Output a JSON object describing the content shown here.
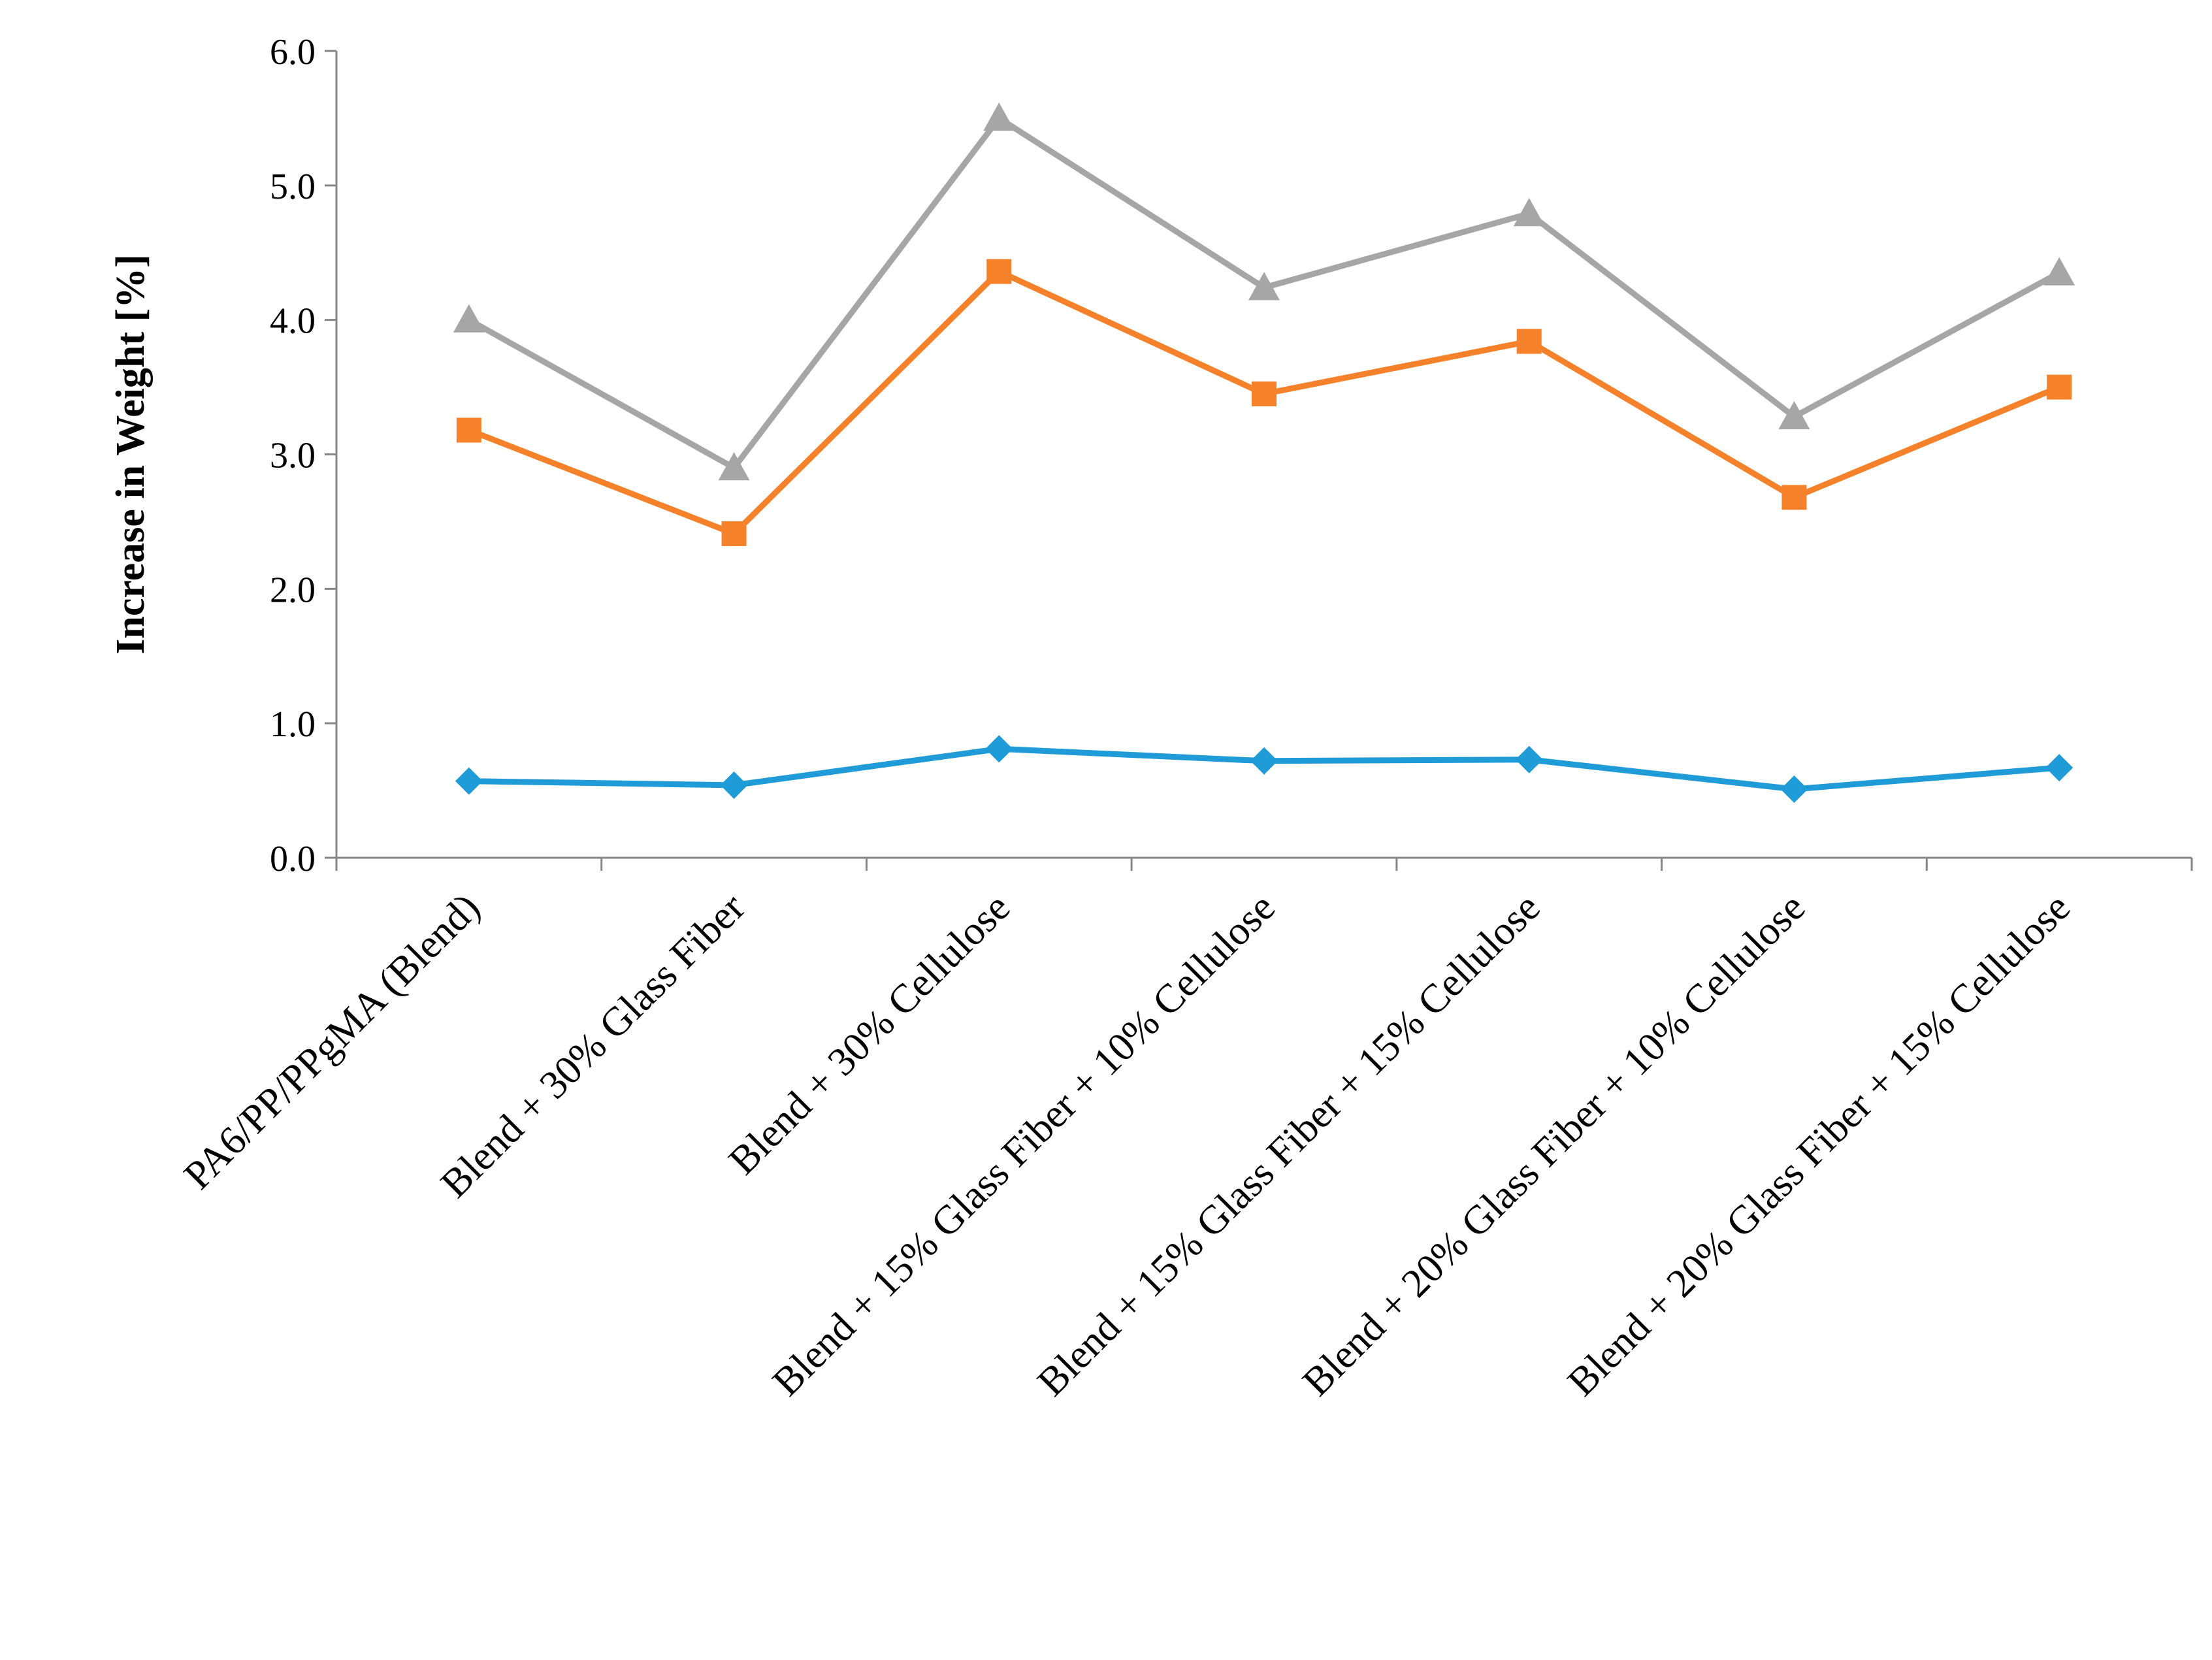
{
  "chart_data": {
    "type": "line",
    "title": "",
    "xlabel": "",
    "ylabel": "Increase in Weight [%]",
    "ylim": [
      0,
      6
    ],
    "ytick_step": 1,
    "ytick_labels": [
      "0.0",
      "1.0",
      "2.0",
      "3.0",
      "4.0",
      "5.0",
      "6.0"
    ],
    "grid": false,
    "legend": "none",
    "categories": [
      "PA6/PP/PPgMA (Blend)",
      "Blend + 30% Glass Fiber",
      "Blend + 30% Cellulose",
      "Blend + 15% Glass Fiber + 10% Cellulose",
      "Blend + 15% Glass Fiber + 15% Cellulose",
      "Blend + 20% Glass Fiber + 10% Cellulose",
      "Blend + 20% Glass Fiber + 15% Cellulose"
    ],
    "series": [
      {
        "name": "series-1",
        "color": "#1f9bd7",
        "marker": "diamond",
        "values": [
          0.57,
          0.54,
          0.81,
          0.72,
          0.73,
          0.51,
          0.67
        ]
      },
      {
        "name": "series-2",
        "color": "#f5822a",
        "marker": "square",
        "values": [
          3.18,
          2.41,
          4.36,
          3.45,
          3.84,
          2.68,
          3.5
        ]
      },
      {
        "name": "series-3",
        "color": "#a6a6a6",
        "marker": "triangle",
        "values": [
          4.0,
          2.9,
          5.5,
          4.24,
          4.79,
          3.28,
          4.35
        ]
      }
    ]
  }
}
